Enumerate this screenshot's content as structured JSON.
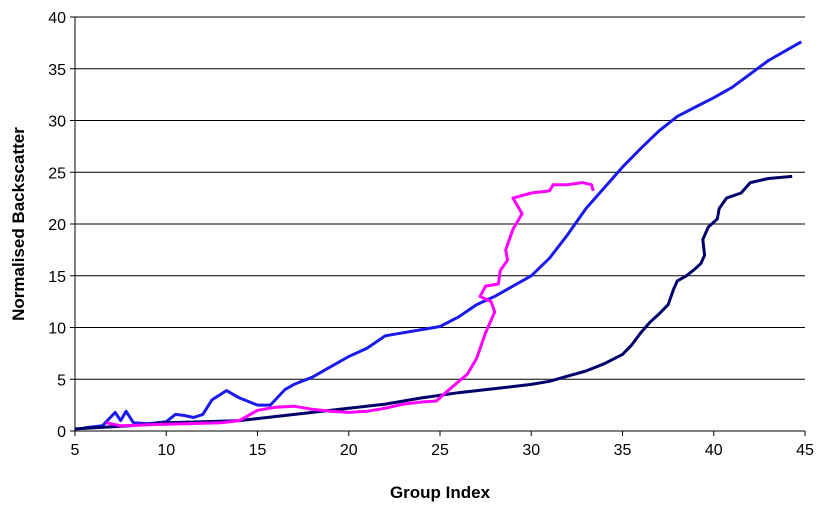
{
  "chart_data": {
    "type": "line",
    "xlabel": "Group Index",
    "ylabel": "Normalised Backscatter",
    "xlim": [
      5,
      45
    ],
    "xticks": [
      5,
      10,
      15,
      20,
      25,
      30,
      35,
      40,
      45
    ],
    "ylim": [
      0,
      40
    ],
    "yticks": [
      0,
      5,
      10,
      15,
      20,
      25,
      30,
      35,
      40
    ],
    "grid": true,
    "series": [
      {
        "color": "#1a1aee",
        "x": [
          5.5,
          6.5,
          7.2,
          7.5,
          7.8,
          8.2,
          9,
          10,
          10.5,
          11,
          11.5,
          12,
          12.5,
          13.3,
          14,
          15,
          15.7,
          16.5,
          17,
          18,
          19,
          20,
          21,
          22,
          23,
          24,
          25,
          26,
          27,
          28,
          29,
          30,
          31,
          32,
          33,
          34,
          35,
          36,
          37,
          38,
          39,
          40,
          41,
          42,
          43,
          44,
          44.8
        ],
        "values": [
          0.3,
          0.5,
          1.8,
          1,
          1.9,
          0.8,
          0.7,
          0.9,
          1.6,
          1.5,
          1.3,
          1.6,
          3,
          3.9,
          3.2,
          2.5,
          2.5,
          4,
          4.5,
          5.2,
          6.2,
          7.2,
          8,
          9.2,
          9.5,
          9.8,
          10.1,
          11,
          12.2,
          13,
          14,
          15,
          16.7,
          19,
          21.5,
          23.5,
          25.5,
          27.3,
          29,
          30.4,
          31.3,
          32.2,
          33.2,
          34.5,
          35.8,
          36.8,
          37.6
        ]
      },
      {
        "color": "#00006b",
        "x": [
          5,
          8,
          10,
          12,
          14,
          16,
          18,
          20,
          22,
          24,
          26,
          28,
          30,
          31,
          32,
          33,
          34,
          35,
          35.5,
          36,
          36.5,
          37,
          37.5,
          37.8,
          38,
          38.5,
          39,
          39.3,
          39.5,
          39.4,
          39.7,
          40.2,
          40.3,
          40.7,
          41.5,
          42,
          43,
          44.3
        ],
        "values": [
          0.2,
          0.5,
          0.8,
          0.9,
          1,
          1.4,
          1.8,
          2.2,
          2.6,
          3.2,
          3.7,
          4.1,
          4.5,
          4.8,
          5.3,
          5.8,
          6.5,
          7.4,
          8.3,
          9.5,
          10.5,
          11.3,
          12.2,
          13.7,
          14.5,
          15,
          15.7,
          16.2,
          17,
          18.5,
          19.7,
          20.5,
          21.5,
          22.5,
          23,
          24,
          24.4,
          24.6
        ]
      },
      {
        "color": "#ff00ff",
        "x": [
          6.7,
          7.5,
          9,
          11,
          13,
          14,
          15,
          16,
          17,
          18,
          19,
          20,
          21,
          22,
          23,
          24,
          24.8,
          25.5,
          26.5,
          27,
          27.5,
          28,
          27.8,
          27.2,
          27.5,
          28.2,
          28.3,
          28.7,
          28.6,
          29,
          29.5,
          29,
          30,
          31,
          31.2,
          32,
          32.8,
          33.3,
          33.4
        ],
        "values": [
          0.8,
          0.5,
          0.6,
          0.7,
          0.8,
          1,
          2,
          2.3,
          2.4,
          2.1,
          1.9,
          1.8,
          1.9,
          2.2,
          2.6,
          2.8,
          2.9,
          4,
          5.5,
          7,
          9.5,
          11.5,
          12.5,
          13,
          14,
          14.2,
          15.5,
          16.5,
          17.5,
          19.5,
          21,
          22.5,
          23,
          23.2,
          23.8,
          23.8,
          24,
          23.8,
          23.2
        ]
      }
    ]
  }
}
